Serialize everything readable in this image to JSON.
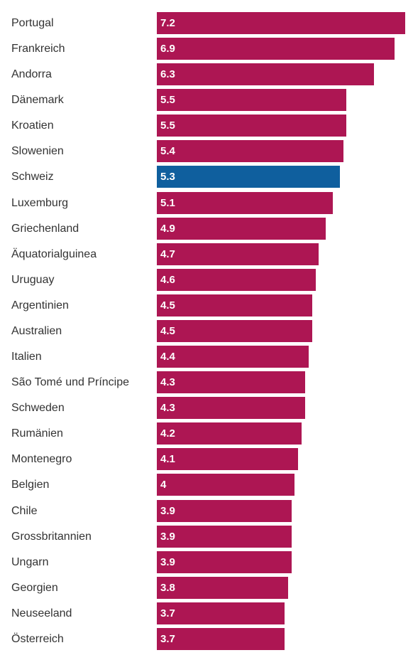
{
  "chart_data": {
    "type": "bar",
    "orientation": "horizontal",
    "categories": [
      "Portugal",
      "Frankreich",
      "Andorra",
      "Dänemark",
      "Kroatien",
      "Slowenien",
      "Schweiz",
      "Luxemburg",
      "Griechenland",
      "Äquatorialguinea",
      "Uruguay",
      "Argentinien",
      "Australien",
      "Italien",
      "São Tomé und Príncipe",
      "Schweden",
      "Rumänien",
      "Montenegro",
      "Belgien",
      "Chile",
      "Grossbritannien",
      "Ungarn",
      "Georgien",
      "Neuseeland",
      "Österreich"
    ],
    "values": [
      7.2,
      6.9,
      6.3,
      5.5,
      5.5,
      5.4,
      5.3,
      5.1,
      4.9,
      4.7,
      4.6,
      4.5,
      4.5,
      4.4,
      4.3,
      4.3,
      4.2,
      4.1,
      4,
      3.9,
      3.9,
      3.9,
      3.8,
      3.7,
      3.7
    ],
    "value_labels": [
      "7.2",
      "6.9",
      "6.3",
      "5.5",
      "5.5",
      "5.4",
      "5.3",
      "5.1",
      "4.9",
      "4.7",
      "4.6",
      "4.5",
      "4.5",
      "4.4",
      "4.3",
      "4.3",
      "4.2",
      "4.1",
      "4",
      "3.9",
      "3.9",
      "3.9",
      "3.8",
      "3.7",
      "3.7"
    ],
    "highlight_category": "Schweiz",
    "colors": {
      "default": "#ad1653",
      "highlight": "#0f5f9e"
    },
    "xlim": [
      0,
      7.2
    ],
    "title": "",
    "xlabel": "",
    "ylabel": "",
    "grid": false,
    "legend": "none"
  }
}
